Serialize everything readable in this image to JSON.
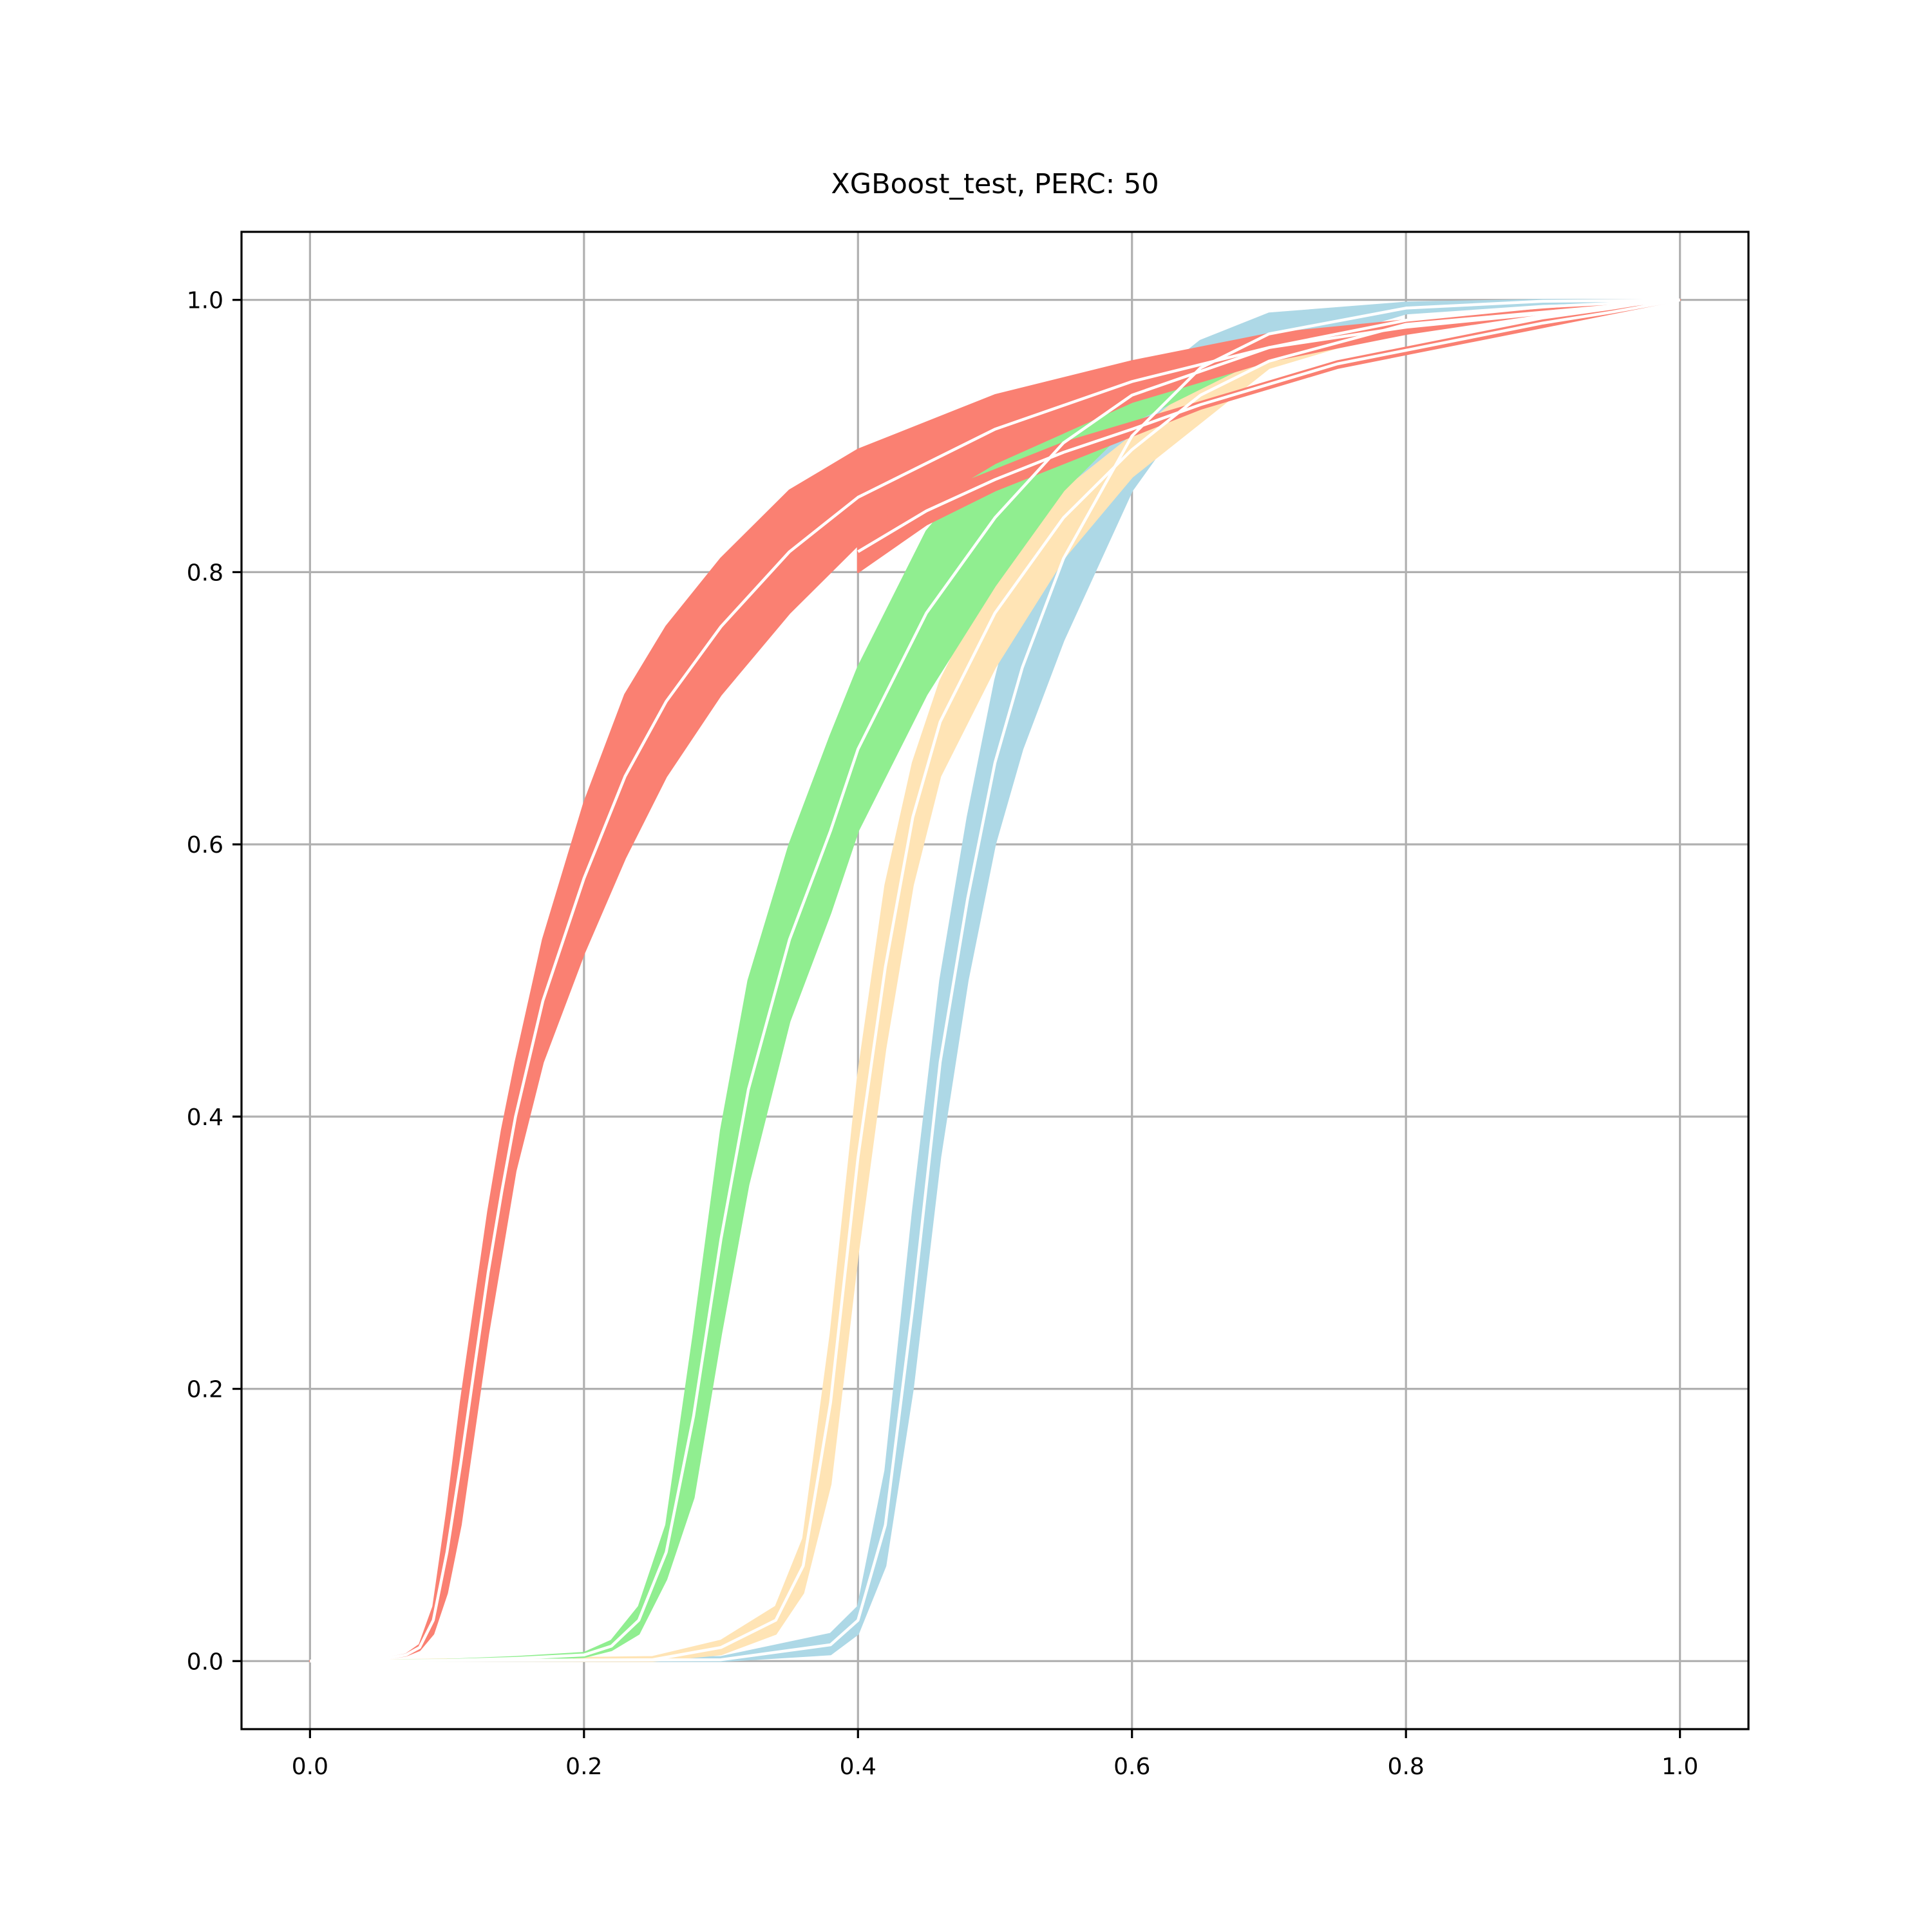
{
  "chart_data": {
    "type": "area",
    "title": "XGBoost_test, PERC: 50",
    "xlabel": "",
    "ylabel": "",
    "xlim": [
      -0.05,
      1.05
    ],
    "ylim": [
      -0.05,
      1.05
    ],
    "xticks": [
      "0.0",
      "0.2",
      "0.4",
      "0.6",
      "0.8",
      "1.0"
    ],
    "yticks": [
      "0.0",
      "0.2",
      "0.4",
      "0.6",
      "0.8",
      "1.0"
    ],
    "grid": true,
    "colors": {
      "blue": "#add8e6",
      "orange": "#ffe4b5",
      "green": "#90ee90",
      "red": "#fa8072",
      "median": "#ffffff",
      "grid": "#b0b0b0"
    },
    "series": [
      {
        "color": "blue",
        "bands": [
          {
            "x": [
              0,
              0.3,
              0.38,
              0.4,
              0.42,
              0.44,
              0.46,
              0.48,
              0.5,
              0.52,
              0.55,
              0.6,
              0.65,
              0.7,
              0.8,
              0.9,
              1.0
            ],
            "lower": [
              0,
              0,
              0.005,
              0.02,
              0.07,
              0.2,
              0.37,
              0.5,
              0.6,
              0.67,
              0.75,
              0.86,
              0.93,
              0.96,
              0.99,
              0.997,
              1.0
            ],
            "upper": [
              0,
              0.003,
              0.02,
              0.04,
              0.14,
              0.33,
              0.5,
              0.62,
              0.72,
              0.8,
              0.87,
              0.93,
              0.97,
              0.99,
              0.998,
              1.0,
              1.0
            ],
            "median": [
              0,
              0.001,
              0.012,
              0.03,
              0.1,
              0.26,
              0.44,
              0.56,
              0.66,
              0.73,
              0.81,
              0.9,
              0.95,
              0.975,
              0.994,
              0.999,
              1.0
            ]
          }
        ]
      },
      {
        "color": "orange",
        "bands": [
          {
            "x": [
              0,
              0.25,
              0.3,
              0.34,
              0.36,
              0.38,
              0.4,
              0.42,
              0.44,
              0.46,
              0.5,
              0.55,
              0.6,
              0.65,
              0.7,
              0.8,
              1.0
            ],
            "lower": [
              0,
              0,
              0.005,
              0.02,
              0.05,
              0.13,
              0.3,
              0.45,
              0.57,
              0.65,
              0.73,
              0.81,
              0.87,
              0.91,
              0.95,
              0.98,
              1.0
            ],
            "upper": [
              0,
              0.003,
              0.015,
              0.04,
              0.09,
              0.24,
              0.43,
              0.57,
              0.66,
              0.72,
              0.8,
              0.86,
              0.9,
              0.94,
              0.96,
              0.985,
              1.0
            ],
            "median": [
              0,
              0.001,
              0.01,
              0.03,
              0.07,
              0.19,
              0.37,
              0.51,
              0.62,
              0.69,
              0.77,
              0.84,
              0.89,
              0.93,
              0.955,
              0.982,
              1.0
            ]
          }
        ]
      },
      {
        "color": "green",
        "bands": [
          {
            "x": [
              0,
              0.1,
              0.15,
              0.2,
              0.22,
              0.24,
              0.26,
              0.28,
              0.3,
              0.32,
              0.35,
              0.38,
              0.4,
              0.45,
              0.5,
              0.55,
              0.6,
              0.7,
              0.8,
              0.9,
              1.0
            ],
            "lower": [
              0,
              0,
              0.001,
              0.003,
              0.008,
              0.02,
              0.06,
              0.12,
              0.24,
              0.35,
              0.47,
              0.55,
              0.61,
              0.71,
              0.79,
              0.86,
              0.91,
              0.96,
              0.985,
              0.995,
              1.0
            ],
            "upper": [
              0,
              0.001,
              0.003,
              0.006,
              0.015,
              0.04,
              0.1,
              0.24,
              0.39,
              0.5,
              0.6,
              0.68,
              0.73,
              0.83,
              0.89,
              0.93,
              0.95,
              0.97,
              0.985,
              0.995,
              1.0
            ],
            "median": [
              0,
              0.0005,
              0.002,
              0.0045,
              0.011,
              0.03,
              0.08,
              0.18,
              0.31,
              0.42,
              0.53,
              0.61,
              0.67,
              0.77,
              0.84,
              0.895,
              0.93,
              0.965,
              0.985,
              0.995,
              1.0
            ]
          }
        ]
      },
      {
        "color": "red",
        "bands": [
          {
            "x": [
              0,
              0.05,
              0.07,
              0.08,
              0.09,
              0.1,
              0.11,
              0.12,
              0.13,
              0.14,
              0.15,
              0.17,
              0.2,
              0.23,
              0.26,
              0.3,
              0.35,
              0.4,
              0.5,
              0.6,
              0.7,
              0.8,
              0.9,
              1.0
            ],
            "lower": [
              0,
              0.001,
              0.004,
              0.008,
              0.02,
              0.05,
              0.1,
              0.17,
              0.24,
              0.3,
              0.36,
              0.44,
              0.52,
              0.59,
              0.65,
              0.71,
              0.77,
              0.82,
              0.88,
              0.925,
              0.955,
              0.975,
              0.99,
              1.0
            ],
            "upper": [
              0,
              0.001,
              0.005,
              0.012,
              0.04,
              0.11,
              0.19,
              0.26,
              0.33,
              0.39,
              0.44,
              0.53,
              0.63,
              0.71,
              0.76,
              0.81,
              0.86,
              0.89,
              0.93,
              0.955,
              0.975,
              0.985,
              0.993,
              1.0
            ],
            "median": [
              0,
              0.001,
              0.0045,
              0.01,
              0.03,
              0.08,
              0.145,
              0.215,
              0.285,
              0.345,
              0.4,
              0.485,
              0.575,
              0.65,
              0.705,
              0.76,
              0.815,
              0.855,
              0.905,
              0.94,
              0.965,
              0.98,
              0.99,
              1.0
            ]
          },
          {
            "x": [
              0.4,
              0.45,
              0.5,
              0.55,
              0.6,
              0.65,
              0.7,
              0.75,
              0.8,
              0.85,
              0.9,
              0.95,
              1.0
            ],
            "lower": [
              0.8,
              0.835,
              0.86,
              0.88,
              0.9,
              0.92,
              0.935,
              0.95,
              0.96,
              0.97,
              0.98,
              0.99,
              1.0
            ],
            "upper": [
              0.83,
              0.855,
              0.875,
              0.895,
              0.91,
              0.925,
              0.94,
              0.955,
              0.965,
              0.975,
              0.985,
              0.992,
              1.0
            ],
            "median": [
              0.815,
              0.845,
              0.868,
              0.888,
              0.905,
              0.923,
              0.938,
              0.953,
              0.963,
              0.973,
              0.983,
              0.991,
              1.0
            ]
          }
        ]
      }
    ]
  }
}
